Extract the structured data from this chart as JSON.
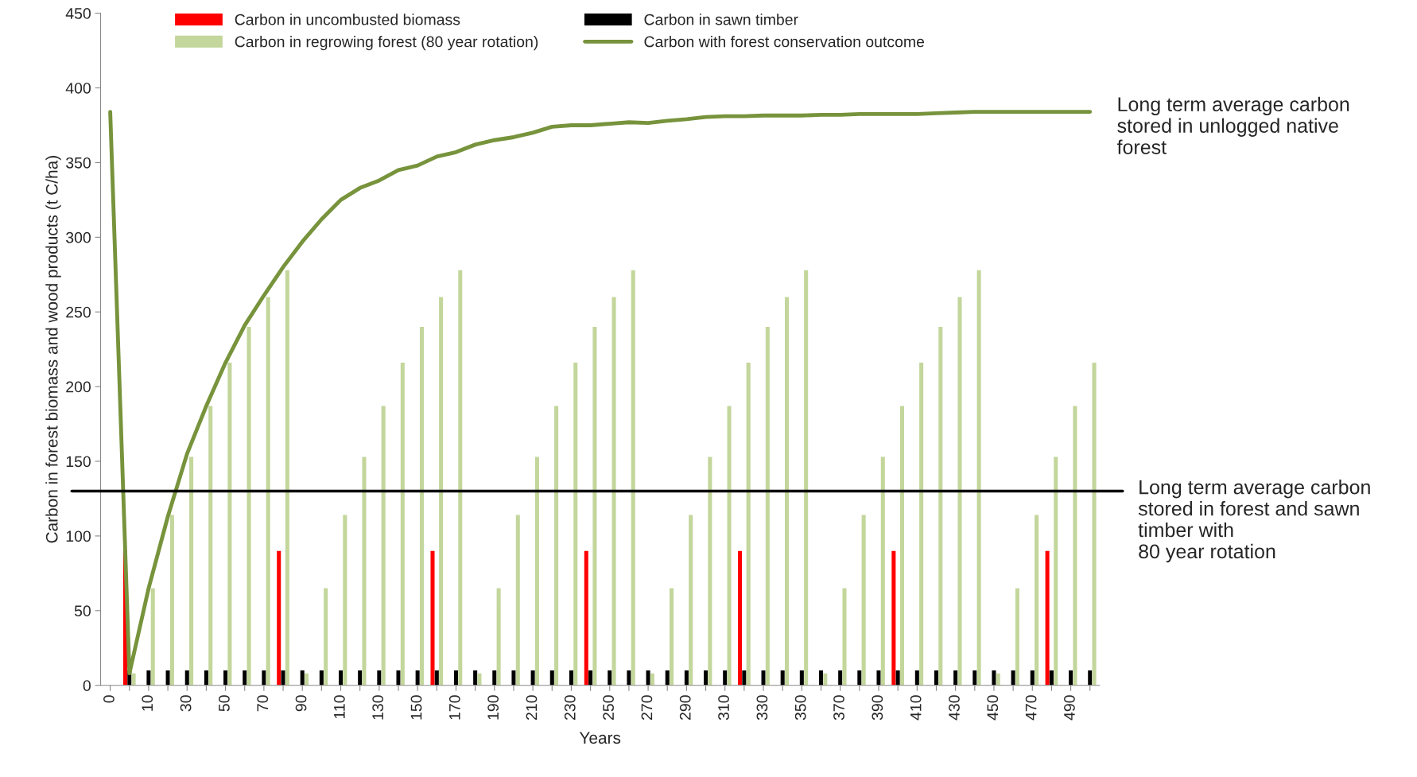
{
  "chart_data": {
    "type": "bar",
    "xlabel": "Years",
    "ylabel": "Carbon in forest biomass and wood products (t C/ha)",
    "categories": [
      "0",
      null,
      "10",
      null,
      "30",
      null,
      "50",
      null,
      "70",
      null,
      "90",
      null,
      "110",
      null,
      "130",
      null,
      "150",
      null,
      "170",
      null,
      "190",
      null,
      "210",
      null,
      "230",
      null,
      "250",
      null,
      "270",
      null,
      "290",
      null,
      "310",
      null,
      "330",
      null,
      "350",
      null,
      "370",
      null,
      "390",
      null,
      "410",
      null,
      "430",
      null,
      "450",
      null,
      "470",
      null,
      "490",
      null
    ],
    "series": [
      {
        "name": "Carbon in uncombusted biomass",
        "color": "#ff0000",
        "values": [
          null,
          90,
          null,
          null,
          null,
          null,
          null,
          null,
          null,
          90,
          null,
          null,
          null,
          null,
          null,
          null,
          null,
          90,
          null,
          null,
          null,
          null,
          null,
          null,
          null,
          90,
          null,
          null,
          null,
          null,
          null,
          null,
          null,
          90,
          null,
          null,
          null,
          null,
          null,
          null,
          null,
          90,
          null,
          null,
          null,
          null,
          null,
          null,
          null,
          90,
          null,
          null
        ]
      },
      {
        "name": "Carbon in sawn timber",
        "color": "#000000",
        "values": [
          null,
          10,
          10,
          10,
          10,
          10,
          10,
          10,
          10,
          10,
          10,
          10,
          10,
          10,
          10,
          10,
          10,
          10,
          10,
          10,
          10,
          10,
          10,
          10,
          10,
          10,
          10,
          10,
          10,
          10,
          10,
          10,
          10,
          10,
          10,
          10,
          10,
          10,
          10,
          10,
          10,
          10,
          10,
          10,
          10,
          10,
          10,
          10,
          10,
          10,
          10,
          10
        ]
      },
      {
        "name": "Carbon in regrowing forest (80 year rotation)",
        "color": "#c3d69b",
        "values": [
          null,
          8,
          65,
          114,
          153,
          187,
          216,
          240,
          260,
          278,
          8,
          65,
          114,
          153,
          187,
          216,
          240,
          260,
          278,
          8,
          65,
          114,
          153,
          187,
          216,
          240,
          260,
          278,
          8,
          65,
          114,
          153,
          187,
          216,
          240,
          260,
          278,
          8,
          65,
          114,
          153,
          187,
          216,
          240,
          260,
          278,
          8,
          65,
          114,
          153,
          187,
          216
        ]
      },
      {
        "name": "Carbon with forest conservation outcome",
        "type": "line",
        "color": "#77933c",
        "values": [
          384,
          8,
          65,
          113,
          155,
          187,
          216,
          241,
          261,
          280,
          297,
          312,
          325,
          333,
          338,
          345,
          348,
          354,
          357,
          362,
          365,
          367,
          370,
          374,
          375,
          375,
          376,
          377,
          376.5,
          378,
          379,
          380.5,
          381,
          381,
          381.5,
          381.5,
          381.5,
          382,
          382,
          382.5,
          382.5,
          382.5,
          382.5,
          383,
          383.5,
          384,
          384,
          384,
          384,
          384,
          384,
          384
        ]
      }
    ],
    "ylim": [
      0,
      450
    ],
    "yticks": [
      0,
      50,
      100,
      150,
      200,
      250,
      300,
      350,
      400,
      450
    ],
    "ref_lines": [
      {
        "axis": "y",
        "value": 130,
        "label": "Long term average carbon\nstored in forest and sawn\ntimber with\n80 year rotation",
        "color": "#000000"
      }
    ],
    "annotations": [
      "Long term average carbon\nstored in unlogged native\nforest"
    ],
    "legend": "top",
    "grid": false,
    "marker": "none",
    "line_style": "solid"
  }
}
